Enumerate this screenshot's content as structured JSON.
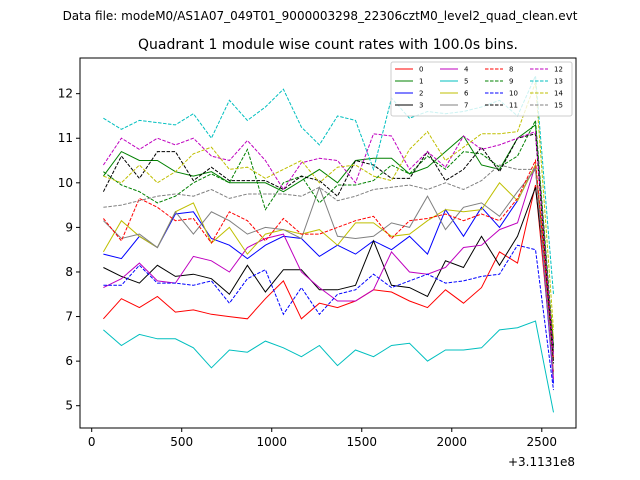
{
  "chart_data": {
    "type": "line",
    "suptitle": "Data file: modeM0/AS1A07_049T01_9000003298_22306cztM0_level2_quad_clean.evt",
    "title": "Quadrant 1 module wise count rates with 100.0s bins.",
    "xlabel": "",
    "ylabel": "",
    "x_offset_label": "+3.1131e8",
    "xlim": [
      -65,
      2690
    ],
    "ylim": [
      4.5,
      12.8
    ],
    "xticks": [
      0,
      500,
      1000,
      1500,
      2000,
      2500
    ],
    "yticks": [
      5,
      6,
      7,
      8,
      9,
      10,
      11,
      12
    ],
    "x": [
      65,
      165,
      265,
      365,
      465,
      565,
      665,
      765,
      865,
      965,
      1065,
      1165,
      1265,
      1365,
      1465,
      1565,
      1665,
      1765,
      1865,
      1965,
      2065,
      2165,
      2265,
      2365,
      2465,
      2565
    ],
    "series": [
      {
        "name": "0",
        "color": "#ff0000",
        "dash": false,
        "values": [
          6.95,
          7.4,
          7.2,
          7.45,
          7.1,
          7.15,
          7.05,
          7.0,
          6.95,
          7.4,
          7.8,
          6.95,
          7.3,
          7.2,
          7.35,
          7.6,
          7.55,
          7.35,
          7.2,
          7.6,
          7.3,
          7.65,
          8.45,
          8.2,
          9.95,
          5.75
        ]
      },
      {
        "name": "1",
        "color": "#008000",
        "dash": false,
        "values": [
          10.15,
          10.7,
          10.5,
          10.5,
          10.25,
          10.15,
          10.25,
          10.0,
          10.0,
          10.0,
          9.8,
          10.05,
          10.3,
          10.0,
          10.5,
          10.55,
          10.55,
          10.2,
          10.35,
          10.7,
          11.05,
          10.4,
          10.3,
          11.0,
          11.3,
          6.2
        ]
      },
      {
        "name": "2",
        "color": "#0000ff",
        "dash": false,
        "values": [
          8.4,
          8.3,
          8.8,
          8.55,
          9.3,
          9.35,
          8.75,
          8.6,
          8.3,
          8.6,
          8.8,
          8.75,
          8.35,
          8.6,
          8.4,
          8.7,
          8.5,
          8.8,
          8.4,
          9.4,
          8.8,
          9.45,
          9.0,
          9.6,
          10.4,
          5.5
        ]
      },
      {
        "name": "3",
        "color": "#000000",
        "dash": false,
        "values": [
          8.1,
          7.9,
          7.75,
          8.15,
          7.9,
          7.95,
          7.85,
          7.5,
          8.15,
          7.55,
          8.05,
          8.05,
          7.6,
          7.6,
          7.7,
          8.7,
          7.7,
          7.65,
          7.45,
          8.25,
          8.1,
          8.8,
          8.15,
          8.8,
          9.9,
          6.35
        ]
      },
      {
        "name": "4",
        "color": "#bf00bf",
        "dash": false,
        "values": [
          7.65,
          7.85,
          8.2,
          7.8,
          7.75,
          8.35,
          8.25,
          8.0,
          8.55,
          8.75,
          8.85,
          8.0,
          7.65,
          7.35,
          7.35,
          7.6,
          8.45,
          8.0,
          7.95,
          8.1,
          8.55,
          8.6,
          8.95,
          9.1,
          10.4,
          5.6
        ]
      },
      {
        "name": "5",
        "color": "#00bfbf",
        "dash": false,
        "values": [
          6.7,
          6.35,
          6.6,
          6.5,
          6.5,
          6.3,
          5.85,
          6.25,
          6.2,
          6.45,
          6.3,
          6.1,
          6.35,
          5.9,
          6.25,
          6.1,
          6.35,
          6.4,
          6.0,
          6.25,
          6.25,
          6.3,
          6.7,
          6.75,
          6.9,
          4.85
        ]
      },
      {
        "name": "6",
        "color": "#bfbf00",
        "dash": false,
        "values": [
          8.45,
          9.15,
          8.8,
          8.55,
          9.35,
          9.55,
          8.65,
          9.0,
          8.4,
          8.85,
          8.95,
          8.85,
          8.95,
          8.6,
          9.1,
          9.1,
          8.8,
          8.85,
          9.15,
          9.4,
          9.35,
          9.4,
          10.0,
          9.6,
          10.4,
          6.5
        ]
      },
      {
        "name": "7",
        "color": "#808080",
        "dash": false,
        "values": [
          9.15,
          8.75,
          8.85,
          8.55,
          9.35,
          8.85,
          9.35,
          9.15,
          8.85,
          9.0,
          8.95,
          8.75,
          9.9,
          8.8,
          8.75,
          8.8,
          9.1,
          9.0,
          9.7,
          8.95,
          9.45,
          9.55,
          9.25,
          9.8,
          10.3,
          6.0
        ]
      },
      {
        "name": "8",
        "color": "#ff0000",
        "dash": true,
        "values": [
          9.2,
          8.7,
          9.65,
          9.45,
          9.15,
          9.2,
          8.65,
          9.35,
          9.15,
          8.7,
          9.2,
          8.85,
          8.85,
          9.0,
          9.15,
          9.25,
          8.75,
          9.15,
          9.2,
          9.3,
          9.15,
          9.3,
          9.15,
          9.65,
          10.5,
          6.05
        ]
      },
      {
        "name": "9",
        "color": "#008000",
        "dash": true,
        "values": [
          10.25,
          9.95,
          9.8,
          9.55,
          9.7,
          10.0,
          10.2,
          10.0,
          10.75,
          9.4,
          10.0,
          10.15,
          9.55,
          9.95,
          9.95,
          10.05,
          10.4,
          10.2,
          10.6,
          10.3,
          10.7,
          10.65,
          10.35,
          10.6,
          11.4,
          6.3
        ]
      },
      {
        "name": "10",
        "color": "#0000ff",
        "dash": true,
        "values": [
          7.7,
          7.7,
          8.15,
          7.75,
          7.75,
          7.7,
          7.8,
          7.3,
          7.85,
          8.05,
          7.05,
          7.65,
          7.05,
          7.5,
          7.6,
          7.95,
          7.65,
          7.8,
          7.95,
          7.75,
          7.8,
          7.9,
          7.95,
          8.6,
          8.5,
          5.35
        ]
      },
      {
        "name": "11",
        "color": "#000000",
        "dash": true,
        "values": [
          9.8,
          10.6,
          10.1,
          10.7,
          10.7,
          10.05,
          10.35,
          10.05,
          10.05,
          10.05,
          9.85,
          10.15,
          10.05,
          9.7,
          10.5,
          10.4,
          10.1,
          10.1,
          10.7,
          10.05,
          10.3,
          10.8,
          10.25,
          11.0,
          11.1,
          5.95
        ]
      },
      {
        "name": "12",
        "color": "#bf00bf",
        "dash": true,
        "values": [
          10.4,
          11.0,
          10.75,
          11.0,
          10.85,
          11.0,
          10.6,
          10.5,
          10.95,
          10.5,
          9.85,
          10.45,
          10.55,
          10.5,
          10.0,
          11.1,
          11.05,
          10.3,
          10.7,
          10.35,
          11.05,
          10.75,
          10.85,
          11.0,
          11.15,
          6.15
        ]
      },
      {
        "name": "13",
        "color": "#00bfbf",
        "dash": true,
        "values": [
          11.45,
          11.2,
          11.4,
          11.35,
          11.3,
          11.55,
          11.0,
          11.85,
          11.4,
          11.7,
          12.1,
          11.25,
          10.85,
          11.5,
          11.4,
          10.3,
          11.9,
          11.45,
          11.6,
          11.55,
          11.6,
          11.7,
          11.85,
          11.5,
          12.4,
          7.5
        ]
      },
      {
        "name": "14",
        "color": "#bfbf00",
        "dash": true,
        "values": [
          10.15,
          10.0,
          10.4,
          10.0,
          10.25,
          10.65,
          10.8,
          10.3,
          10.35,
          10.1,
          10.3,
          10.5,
          10.0,
          10.35,
          10.4,
          10.15,
          10.05,
          10.75,
          11.15,
          10.5,
          10.8,
          11.1,
          11.1,
          11.15,
          12.25,
          6.7
        ]
      },
      {
        "name": "15",
        "color": "#808080",
        "dash": true,
        "values": [
          9.45,
          9.5,
          9.6,
          9.7,
          9.75,
          9.7,
          9.85,
          9.65,
          9.75,
          9.75,
          9.75,
          9.7,
          9.9,
          9.6,
          9.7,
          9.85,
          9.9,
          9.95,
          9.85,
          10.0,
          9.85,
          10.05,
          10.4,
          10.3,
          10.3,
          5.7
        ]
      }
    ]
  }
}
